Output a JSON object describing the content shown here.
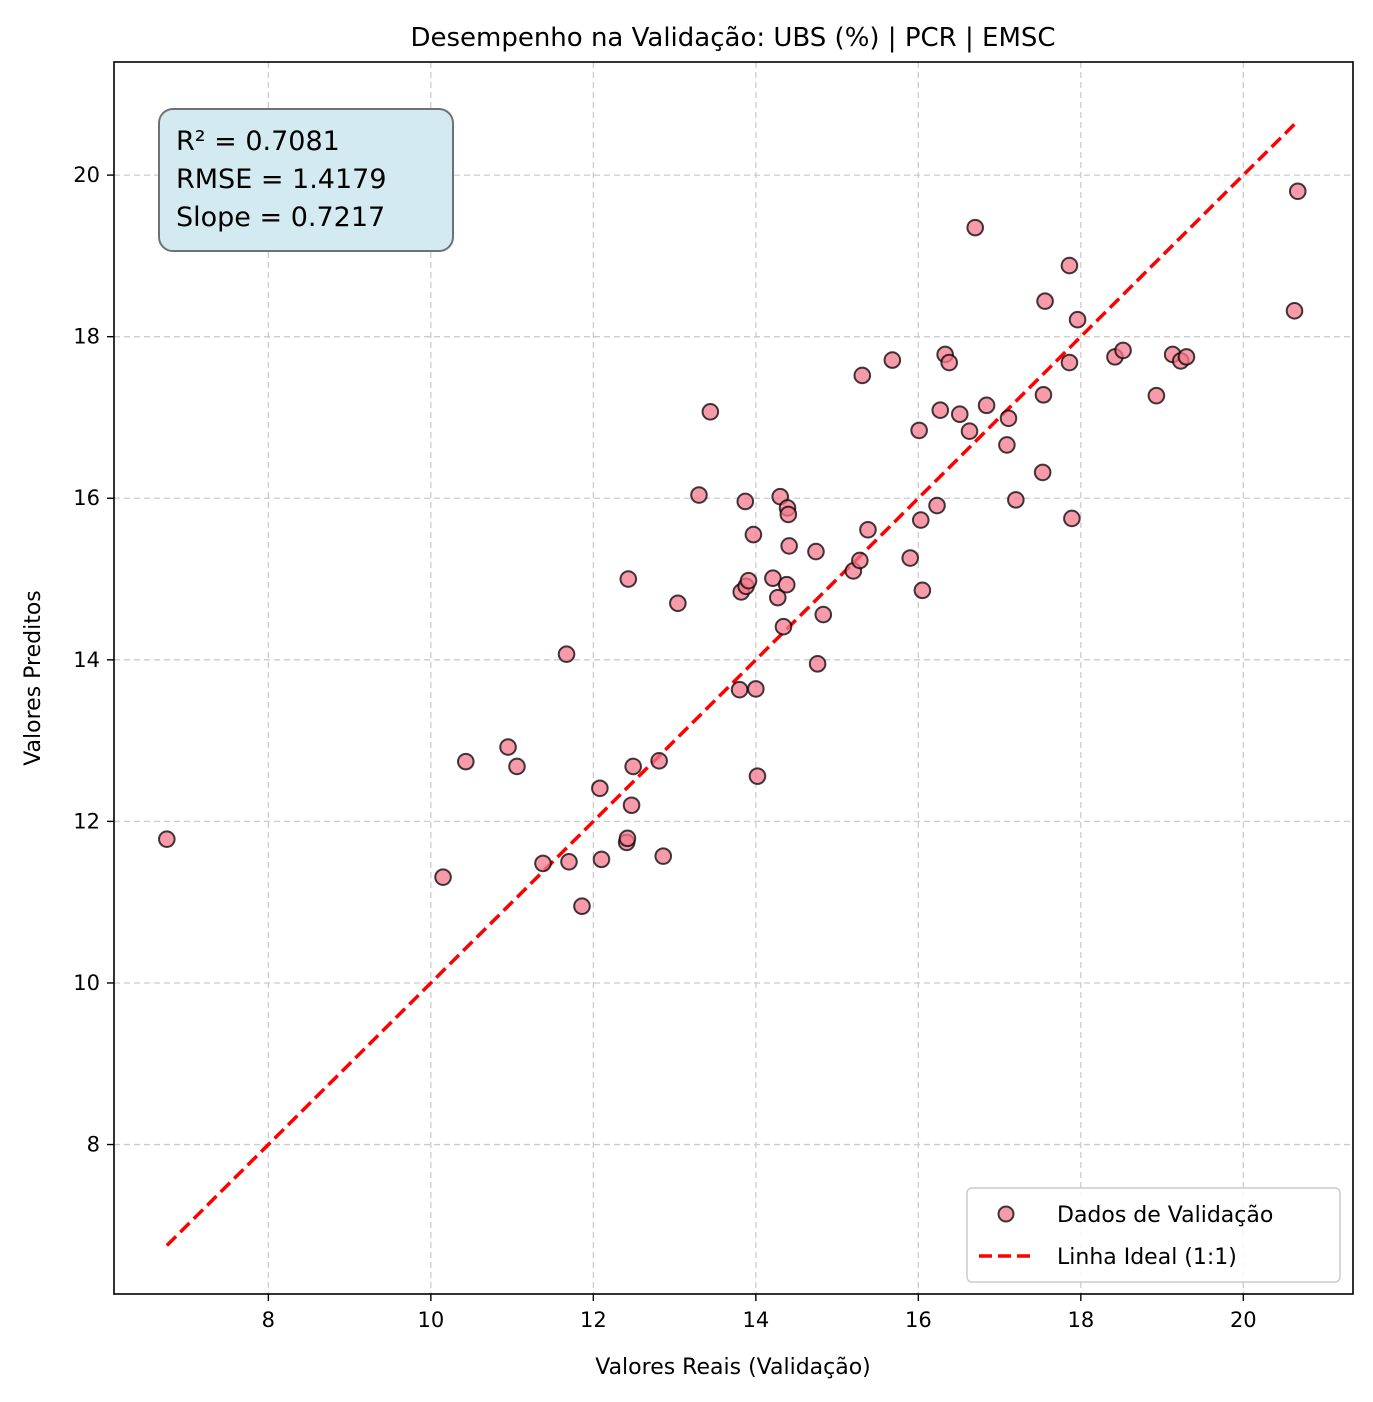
{
  "chart_data": {
    "type": "scatter",
    "title": "Desempenho na Validação: UBS (%) | PCR | EMSC",
    "xlabel": "Valores Reais (Validação)",
    "ylabel": "Valores Preditos",
    "xlim": [
      6.1,
      21.35
    ],
    "ylim": [
      6.15,
      21.4
    ],
    "xticks": [
      8,
      10,
      12,
      14,
      16,
      18,
      20
    ],
    "yticks": [
      8,
      10,
      12,
      14,
      16,
      18,
      20
    ],
    "grid": true,
    "legend_position": "lower-right",
    "stats": [
      "R² = 0.7081",
      "RMSE = 1.4179",
      "Slope = 0.7217"
    ],
    "series": [
      {
        "name": "Dados de Validação",
        "kind": "scatter",
        "color": "#f4788c",
        "edge_color": "#000000",
        "points": [
          [
            6.75,
            11.78
          ],
          [
            10.15,
            11.31
          ],
          [
            10.43,
            12.74
          ],
          [
            10.95,
            12.92
          ],
          [
            11.06,
            12.68
          ],
          [
            11.38,
            11.48
          ],
          [
            11.67,
            14.07
          ],
          [
            11.7,
            11.5
          ],
          [
            11.86,
            10.95
          ],
          [
            12.08,
            12.41
          ],
          [
            12.1,
            11.53
          ],
          [
            12.41,
            11.74
          ],
          [
            12.42,
            11.79
          ],
          [
            12.43,
            15.0
          ],
          [
            12.47,
            12.2
          ],
          [
            12.49,
            12.68
          ],
          [
            12.81,
            12.75
          ],
          [
            12.86,
            11.57
          ],
          [
            13.04,
            14.7
          ],
          [
            13.3,
            16.04
          ],
          [
            13.44,
            17.07
          ],
          [
            13.8,
            13.63
          ],
          [
            13.82,
            14.84
          ],
          [
            13.87,
            15.96
          ],
          [
            13.88,
            14.91
          ],
          [
            13.91,
            14.98
          ],
          [
            13.97,
            15.55
          ],
          [
            14.0,
            13.64
          ],
          [
            14.02,
            12.56
          ],
          [
            14.21,
            15.01
          ],
          [
            14.27,
            14.77
          ],
          [
            14.3,
            16.02
          ],
          [
            14.34,
            14.41
          ],
          [
            14.38,
            14.93
          ],
          [
            14.39,
            15.88
          ],
          [
            14.4,
            15.8
          ],
          [
            14.41,
            15.41
          ],
          [
            14.74,
            15.34
          ],
          [
            14.76,
            13.95
          ],
          [
            14.83,
            14.56
          ],
          [
            15.2,
            15.1
          ],
          [
            15.28,
            15.23
          ],
          [
            15.31,
            17.52
          ],
          [
            15.38,
            15.61
          ],
          [
            15.68,
            17.71
          ],
          [
            15.9,
            15.26
          ],
          [
            16.01,
            16.84
          ],
          [
            16.03,
            15.73
          ],
          [
            16.05,
            14.86
          ],
          [
            16.23,
            15.91
          ],
          [
            16.27,
            17.09
          ],
          [
            16.33,
            17.78
          ],
          [
            16.38,
            17.68
          ],
          [
            16.51,
            17.04
          ],
          [
            16.63,
            16.83
          ],
          [
            16.7,
            19.35
          ],
          [
            16.84,
            17.15
          ],
          [
            17.09,
            16.66
          ],
          [
            17.11,
            16.99
          ],
          [
            17.2,
            15.98
          ],
          [
            17.53,
            16.32
          ],
          [
            17.54,
            17.28
          ],
          [
            17.56,
            18.44
          ],
          [
            17.86,
            17.68
          ],
          [
            17.86,
            18.88
          ],
          [
            17.89,
            15.75
          ],
          [
            17.96,
            18.21
          ],
          [
            18.42,
            17.75
          ],
          [
            18.52,
            17.83
          ],
          [
            18.93,
            17.27
          ],
          [
            19.13,
            17.78
          ],
          [
            19.23,
            17.7
          ],
          [
            19.3,
            17.75
          ],
          [
            20.63,
            18.32
          ],
          [
            20.67,
            19.8
          ]
        ]
      },
      {
        "name": "Linha Ideal (1:1)",
        "kind": "line",
        "color": "#ff0000",
        "line_style": "dashed",
        "x": [
          6.75,
          20.63
        ],
        "y": [
          6.75,
          20.63
        ]
      }
    ]
  },
  "colors": {
    "stats_box_fill": "#d4eaf1",
    "stats_box_border": "#6e7276",
    "grid": "#cccccc"
  }
}
